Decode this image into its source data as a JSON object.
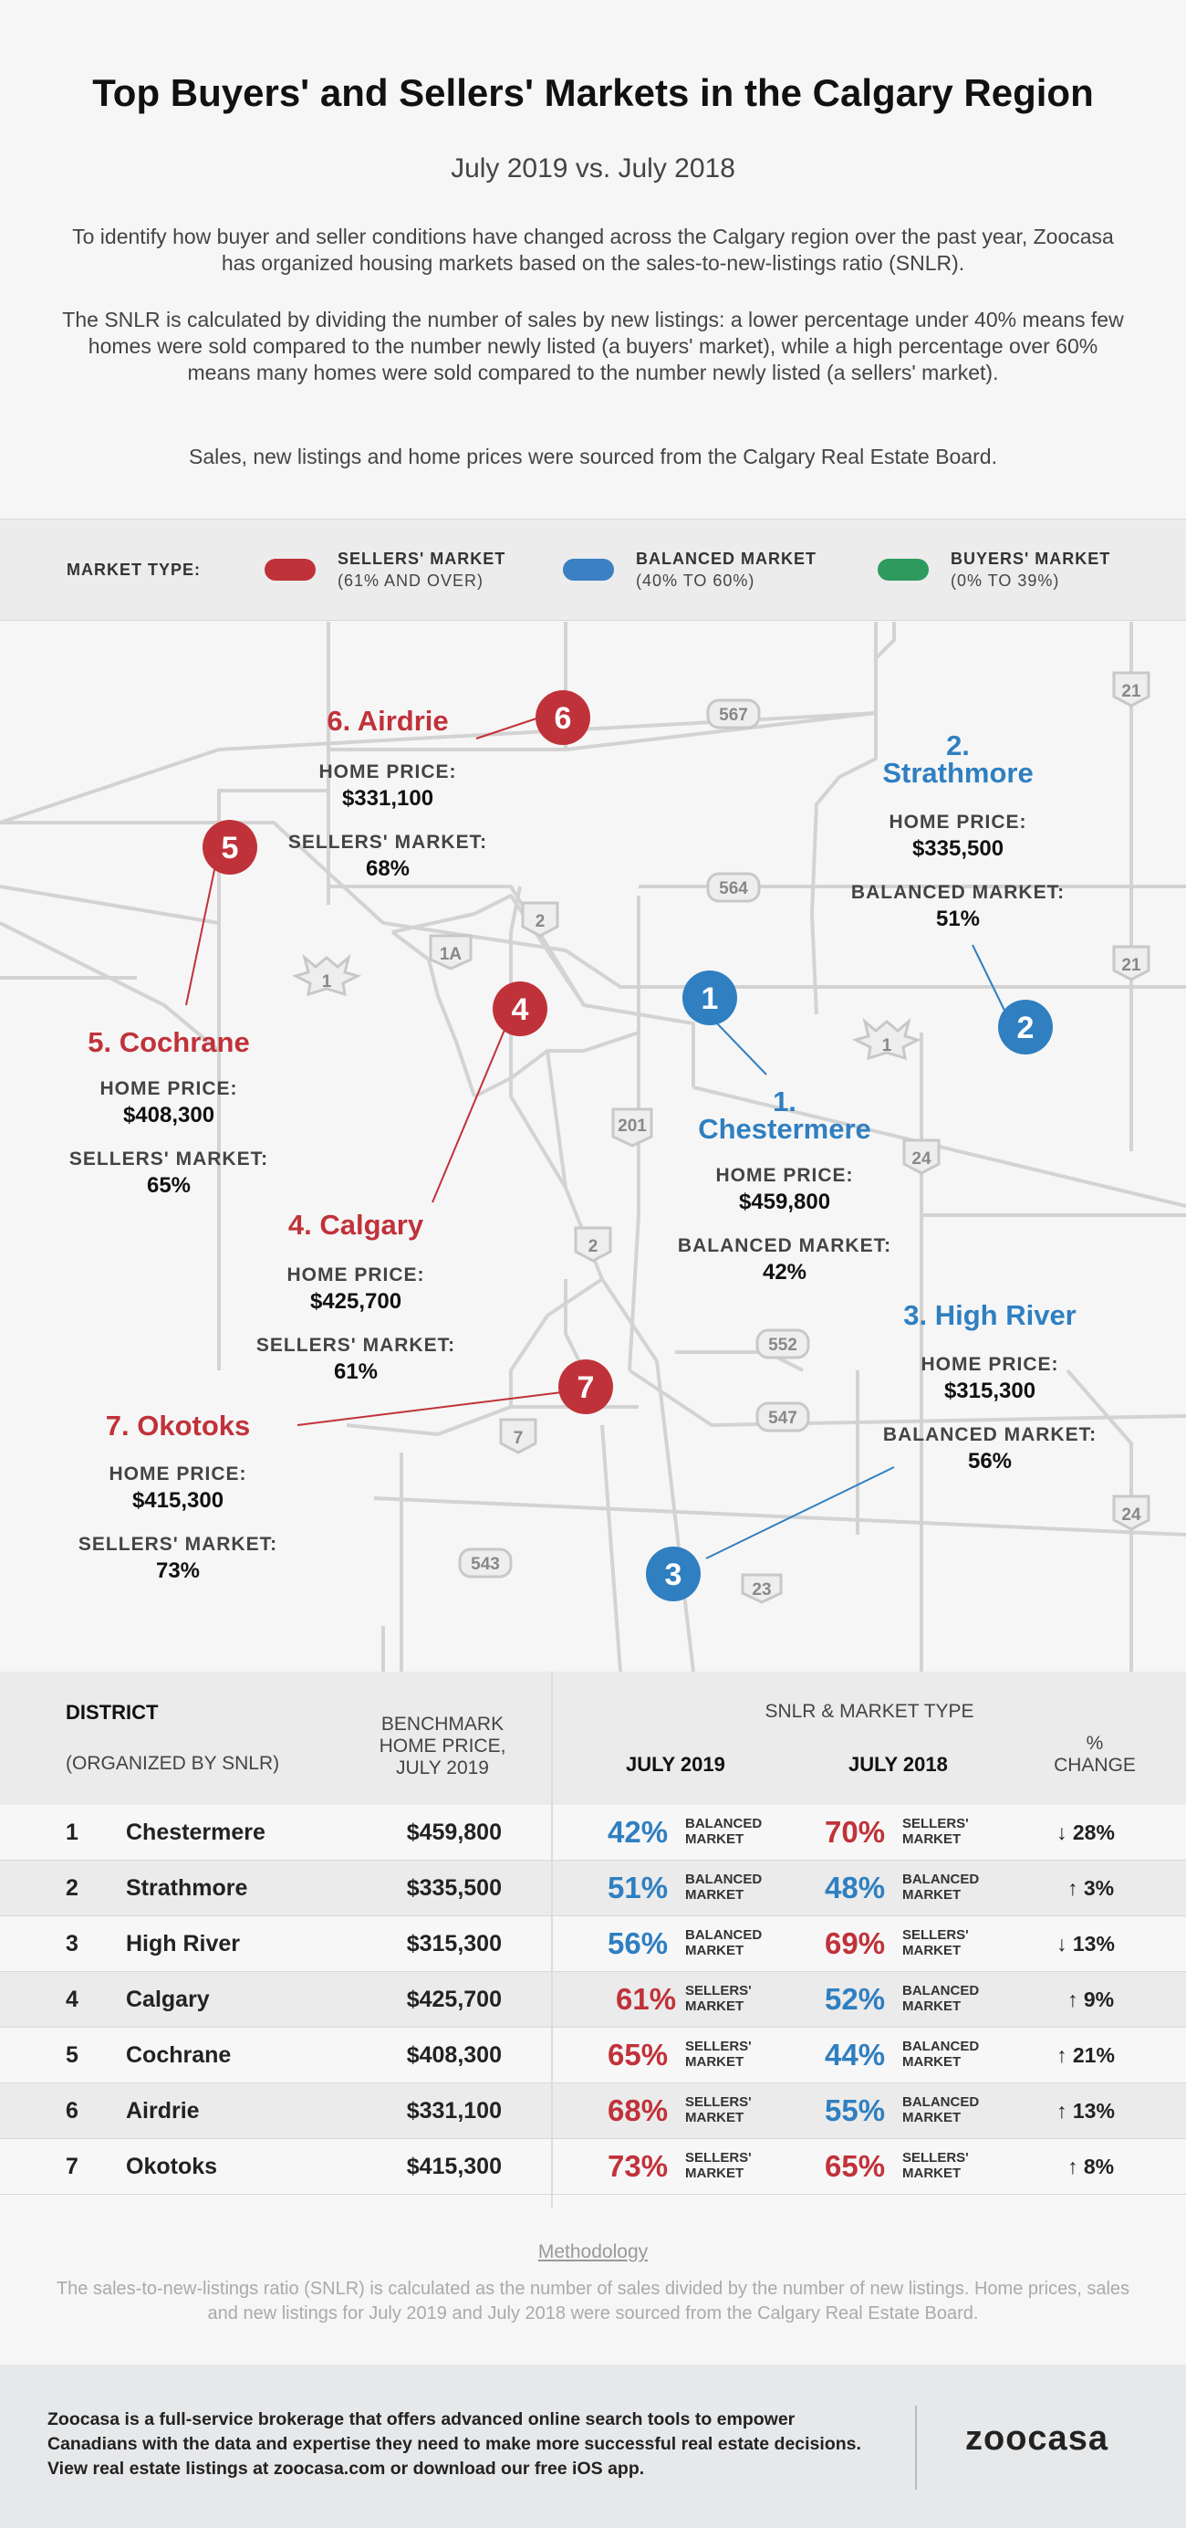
{
  "header": {
    "title": "Top Buyers' and Sellers' Markets in the Calgary Region",
    "subtitle": "July 2019 vs. July 2018",
    "intro1": "To identify how buyer and seller conditions have changed across the Calgary region over the past year, Zoocasa has organized housing markets based on the sales-to-new-listings ratio (SNLR).",
    "intro2": "The SNLR is calculated by dividing the number of sales by new listings: a lower percentage under 40% means few homes were sold compared to the number newly listed (a buyers' market), while a high percentage over 60% means many homes were sold compared to the number newly listed (a sellers' market).",
    "intro3": "Sales, new listings and home prices were sourced from the Calgary Real Estate Board."
  },
  "legend": {
    "title": "MARKET TYPE:",
    "items": [
      {
        "name": "SELLERS' MARKET",
        "range": "(61% AND OVER)",
        "color": "#c0323a"
      },
      {
        "name": "BALANCED MARKET",
        "range": "(40% TO 60%)",
        "color": "#3a80c3"
      },
      {
        "name": "BUYERS' MARKET",
        "range": "(0% TO 39%)",
        "color": "#2f9a5e"
      }
    ]
  },
  "map": {
    "colors": {
      "sellers": "#c0323a",
      "balanced": "#2f7fc1",
      "road": "#d0d0d0"
    },
    "highway_shields": [
      "567",
      "564",
      "552",
      "547",
      "543",
      "23",
      "201",
      "21",
      "21",
      "24",
      "24",
      "7",
      "2",
      "2",
      "1A",
      "1",
      "1"
    ],
    "home_price_label": "HOME PRICE:",
    "cities": [
      {
        "rank": "1",
        "name": "1.",
        "name2": "Chestermere",
        "price": "$459,800",
        "market": "BALANCED MARKET:",
        "snlr": "42%"
      },
      {
        "rank": "2",
        "name": "2.",
        "name2": "Strathmore",
        "price": "$335,500",
        "market": "BALANCED MARKET:",
        "snlr": "51%"
      },
      {
        "rank": "3",
        "name": "3. High River",
        "price": "$315,300",
        "market": "BALANCED MARKET:",
        "snlr": "56%"
      },
      {
        "rank": "4",
        "name": "4. Calgary",
        "price": "$425,700",
        "market": "SELLERS' MARKET:",
        "snlr": "61%"
      },
      {
        "rank": "5",
        "name": "5. Cochrane",
        "price": "$408,300",
        "market": "SELLERS' MARKET:",
        "snlr": "65%"
      },
      {
        "rank": "6",
        "name": "6. Airdrie",
        "price": "$331,100",
        "market": "SELLERS' MARKET:",
        "snlr": "68%"
      },
      {
        "rank": "7",
        "name": "7. Okotoks",
        "price": "$415,300",
        "market": "SELLERS' MARKET:",
        "snlr": "73%"
      }
    ]
  },
  "table": {
    "district": "DISTRICT",
    "organized": "(ORGANIZED BY SNLR)",
    "benchmark1": "BENCHMARK",
    "benchmark2": "HOME PRICE,",
    "benchmark3": "JULY 2019",
    "snlr_header": "SNLR & MARKET TYPE",
    "july2019": "JULY 2019",
    "july2018": "JULY 2018",
    "change1": "%",
    "change2": "CHANGE",
    "rows": [
      {
        "rank": "1",
        "district": "Chestermere",
        "price": "$459,800",
        "s2019": "42%",
        "m2019a": "BALANCED",
        "m2019b": "MARKET",
        "c2019": "#2f7fc1",
        "s2018": "70%",
        "m2018a": "SELLERS'",
        "m2018b": "MARKET",
        "c2018": "#c0323a",
        "arrow": "↓",
        "change": "28%"
      },
      {
        "rank": "2",
        "district": "Strathmore",
        "price": "$335,500",
        "s2019": "51%",
        "m2019a": "BALANCED",
        "m2019b": "MARKET",
        "c2019": "#2f7fc1",
        "s2018": "48%",
        "m2018a": "BALANCED",
        "m2018b": "MARKET",
        "c2018": "#2f7fc1",
        "arrow": "↑",
        "change": "3%"
      },
      {
        "rank": "3",
        "district": "High River",
        "price": "$315,300",
        "s2019": "56%",
        "m2019a": "BALANCED",
        "m2019b": "MARKET",
        "c2019": "#2f7fc1",
        "s2018": "69%",
        "m2018a": "SELLERS'",
        "m2018b": "MARKET",
        "c2018": "#c0323a",
        "arrow": "↓",
        "change": "13%"
      },
      {
        "rank": "4",
        "district": "Calgary",
        "price": "$425,700",
        "s2019": "61%",
        "m2019a": "SELLERS'",
        "m2019b": "MARKET",
        "c2019": "#c0323a",
        "s2018": "52%",
        "m2018a": "BALANCED",
        "m2018b": "MARKET",
        "c2018": "#2f7fc1",
        "arrow": "↑",
        "change": "9%"
      },
      {
        "rank": "5",
        "district": "Cochrane",
        "price": "$408,300",
        "s2019": "65%",
        "m2019a": "SELLERS'",
        "m2019b": "MARKET",
        "c2019": "#c0323a",
        "s2018": "44%",
        "m2018a": "BALANCED",
        "m2018b": "MARKET",
        "c2018": "#2f7fc1",
        "arrow": "↑",
        "change": "21%"
      },
      {
        "rank": "6",
        "district": "Airdrie",
        "price": "$331,100",
        "s2019": "68%",
        "m2019a": "SELLERS'",
        "m2019b": "MARKET",
        "c2019": "#c0323a",
        "s2018": "55%",
        "m2018a": "BALANCED",
        "m2018b": "MARKET",
        "c2018": "#2f7fc1",
        "arrow": "↑",
        "change": "13%"
      },
      {
        "rank": "7",
        "district": "Okotoks",
        "price": "$415,300",
        "s2019": "73%",
        "m2019a": "SELLERS'",
        "m2019b": "MARKET",
        "c2019": "#c0323a",
        "s2018": "65%",
        "m2018a": "SELLERS'",
        "m2018b": "MARKET",
        "c2018": "#c0323a",
        "arrow": "↑",
        "change": "8%"
      }
    ]
  },
  "methodology": {
    "title": "Methodology",
    "text": "The sales-to-new-listings ratio (SNLR) is calculated as the number of sales divided by the number of new listings. Home prices, sales and new listings for July 2019 and July 2018 were sourced from the Calgary Real Estate Board."
  },
  "footer": {
    "text": "Zoocasa is a full-service brokerage that offers advanced online search tools to empower Canadians with the data and expertise they need to make more successful real estate decisions. View real estate listings at zoocasa.com or download our free iOS app.",
    "logo": "zoocasa"
  }
}
